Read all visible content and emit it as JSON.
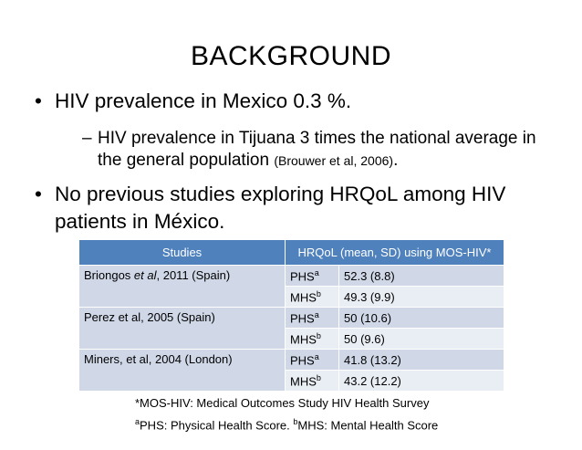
{
  "title": "BACKGROUND",
  "bullet1": "HIV prevalence in Mexico 0.3 %.",
  "sub1_main": "HIV prevalence in Tijuana 3 times the national average in the general population",
  "sub1_cite": "(Brouwer et al, 2006)",
  "sub1_end": ".",
  "bullet2": "No previous studies exploring HRQoL among HIV patients in México.",
  "table": {
    "headers": [
      "Studies",
      "HRQoL (mean, SD) using MOS-HIV*"
    ],
    "rows": [
      {
        "study_pre": "Briongos ",
        "study_em": "et al",
        "study_post": ", 2011 (Spain)",
        "scores": [
          {
            "name": "PHS",
            "sup": "a",
            "value": "52.3 (8.8)"
          },
          {
            "name": "MHS",
            "sup": "b",
            "value": "49.3 (9.9)"
          }
        ]
      },
      {
        "study_pre": "Perez et al, 2005 (Spain)",
        "study_em": "",
        "study_post": "",
        "scores": [
          {
            "name": "PHS",
            "sup": "a",
            "value": "50 (10.6)"
          },
          {
            "name": "MHS",
            "sup": "b",
            "value": "50 (9.6)"
          }
        ]
      },
      {
        "study_pre": "Miners, et al, 2004 (London)",
        "study_em": "",
        "study_post": "",
        "scores": [
          {
            "name": "PHS",
            "sup": "a",
            "value": "41.8 (13.2)"
          },
          {
            "name": "MHS",
            "sup": "b",
            "value": "43.2 (12.2)"
          }
        ]
      }
    ]
  },
  "note1": "*MOS-HIV: Medical Outcomes Study HIV Health Survey",
  "note2_supa": "a",
  "note2_a": "PHS: Physical Health Score. ",
  "note2_supb": "b",
  "note2_b": "MHS: Mental Health Score"
}
